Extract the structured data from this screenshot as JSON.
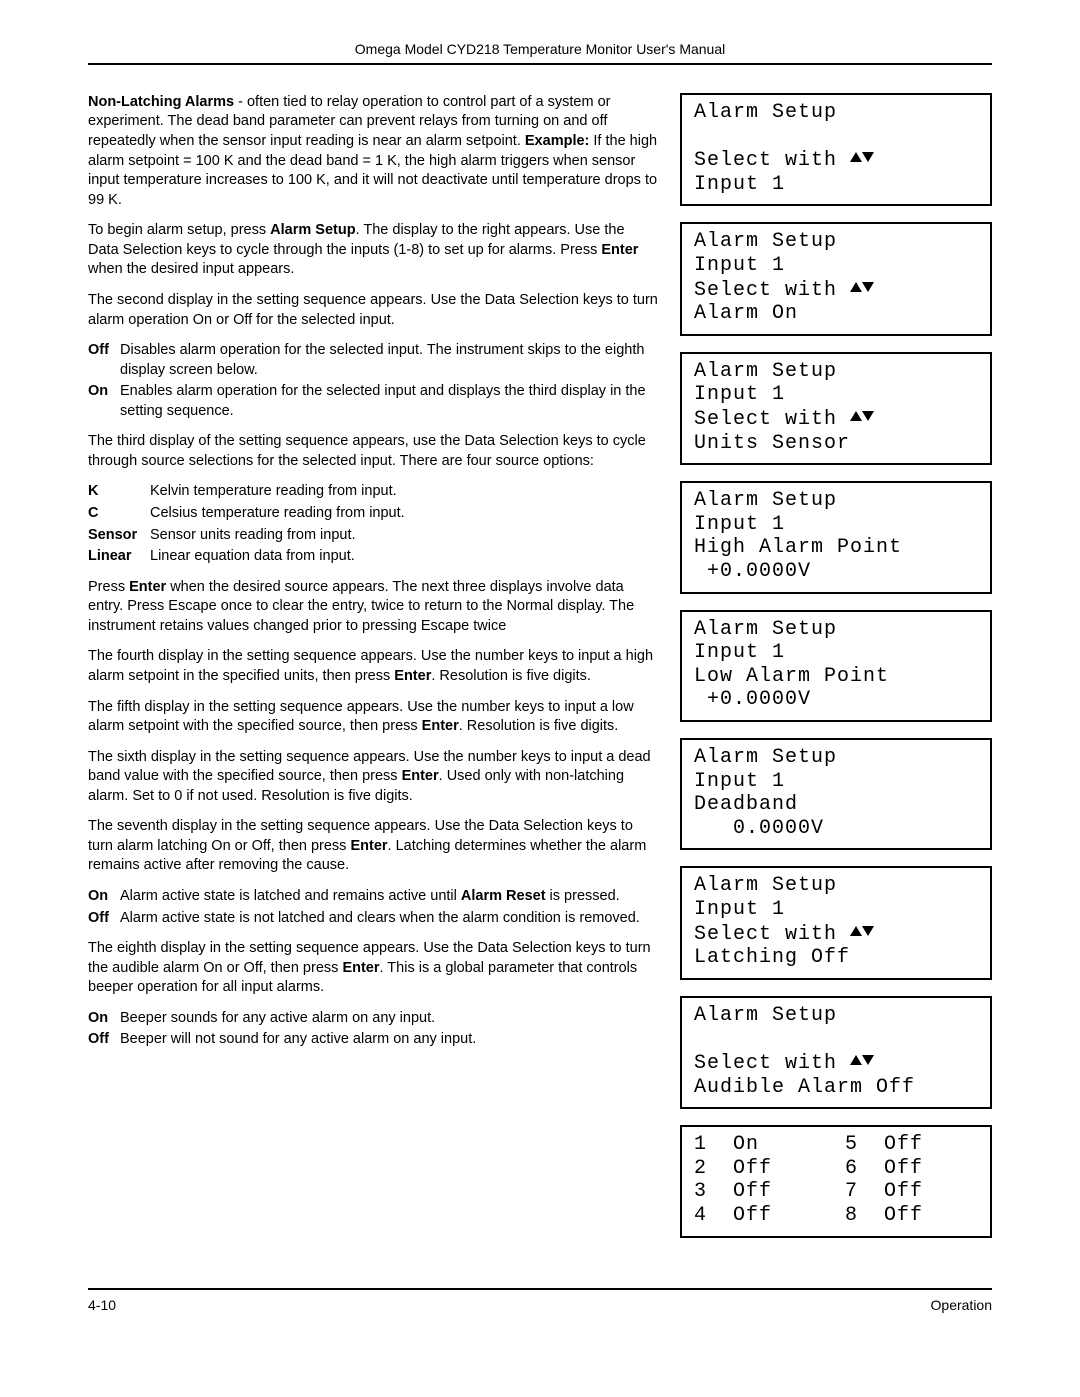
{
  "header": "Omega Model CYD218 Temperature Monitor User's Manual",
  "footer": {
    "left": "4-10",
    "right": "Operation"
  },
  "left": {
    "p_nonlatching": {
      "lead_bold": "Non-Latching Alarms",
      "rest": " - often tied to relay operation to control part of a system or experiment. The dead band parameter can prevent relays from turning on and off repeatedly when the sensor input reading is near an alarm setpoint. ",
      "ex_bold": "Example:",
      "ex_rest": " If the high alarm setpoint = 100 K and the dead band = 1 K, the high alarm triggers when sensor input temperature increases to 100 K, and it will not deactivate until temperature drops to 99 K."
    },
    "p_begin": {
      "a": "To begin alarm setup, press ",
      "b1": "Alarm Setup",
      "b": ". The display to the right appears. Use the Data Selection keys to cycle through the inputs (1-8) to set up for alarms. Press ",
      "b2": "Enter",
      "c": " when the desired input appears."
    },
    "p_second": "The second display in the setting sequence appears. Use the Data Selection keys to turn alarm operation On or Off for the selected input.",
    "list_onoff1": [
      {
        "key": "Off",
        "val": "Disables alarm operation for the selected input. The instrument skips to the eighth display screen below."
      },
      {
        "key": "On",
        "val": "Enables alarm operation for the selected input and displays the third display in the setting sequence."
      }
    ],
    "p_third": "The third display of the setting sequence appears, use the Data Selection keys to cycle through source selections for the selected input. There are four source options:",
    "list_sources": [
      {
        "key": "K",
        "val": "Kelvin temperature reading from input."
      },
      {
        "key": "C",
        "val": "Celsius temperature reading from input."
      },
      {
        "key": "Sensor",
        "val": "Sensor units reading from input."
      },
      {
        "key": "Linear",
        "val": "Linear equation data from input."
      }
    ],
    "p_presssource": {
      "a": "Press ",
      "b1": "Enter",
      "b": " when the desired source appears. The next three displays involve data entry. Press Escape once to clear the entry, twice to return to the Normal display. The instrument retains values changed prior to pressing Escape twice"
    },
    "p_fourth": {
      "a": "The fourth display in the setting sequence appears. Use the number keys to input a high alarm setpoint in the specified units, then press ",
      "b1": "Enter",
      "b": ". Resolution is five digits."
    },
    "p_fifth": {
      "a": "The fifth display in the setting sequence appears. Use the number keys to input a low alarm setpoint with the specified source, then press ",
      "b1": "Enter",
      "b": ". Resolution is five digits."
    },
    "p_sixth": {
      "a": "The sixth display in the setting sequence appears. Use the number keys to input a dead band value with the specified source, then press ",
      "b1": "Enter",
      "b": ". Used only with non-latching alarm. Set to 0 if not used. Resolution is five digits."
    },
    "p_seventh": {
      "a": "The seventh display in the setting sequence appears. Use the Data Selection keys to turn alarm latching On or Off, then press ",
      "b1": "Enter",
      "b": ". Latching determines whether the alarm remains active after removing the cause."
    },
    "list_latch": [
      {
        "key": "On",
        "val_a": "Alarm active state is latched and remains active until ",
        "val_b": "Alarm Reset",
        "val_c": " is pressed."
      },
      {
        "key": "Off",
        "val_a": "Alarm active state is not latched and clears when the alarm condition is removed.",
        "val_b": "",
        "val_c": ""
      }
    ],
    "p_eighth": {
      "a": "The eighth display in the setting sequence appears. Use the Data Selection keys to turn the audible alarm On or Off, then press ",
      "b1": "Enter",
      "b": ". This is a global parameter that controls beeper operation for all input alarms."
    },
    "list_beeper": [
      {
        "key": "On",
        "val": "Beeper sounds for any active alarm on any input."
      },
      {
        "key": "Off",
        "val": "Beeper will not sound for any active alarm on any input."
      }
    ]
  },
  "lcd_select_with": "Select with ",
  "lcd": [
    {
      "lines": [
        "Alarm Setup",
        "",
        "__SELECT__",
        "Input 1"
      ]
    },
    {
      "lines": [
        "Alarm Setup",
        "Input 1",
        "__SELECT__",
        "Alarm On"
      ]
    },
    {
      "lines": [
        "Alarm Setup",
        "Input 1",
        "__SELECT__",
        "Units Sensor"
      ]
    },
    {
      "lines": [
        "Alarm Setup",
        "Input 1",
        "High Alarm Point",
        " +0.0000V"
      ]
    },
    {
      "lines": [
        "Alarm Setup",
        "Input 1",
        "Low Alarm Point",
        " +0.0000V"
      ]
    },
    {
      "lines": [
        "Alarm Setup",
        "Input 1",
        "Deadband",
        "   0.0000V"
      ]
    },
    {
      "lines": [
        "Alarm Setup",
        "Input 1",
        "__SELECT__",
        "Latching Off"
      ]
    },
    {
      "lines": [
        "Alarm Setup",
        "",
        "__SELECT__",
        "Audible Alarm Off"
      ]
    }
  ],
  "status": [
    {
      "n": "1",
      "v": "On"
    },
    {
      "n": "5",
      "v": "Off"
    },
    {
      "n": "2",
      "v": "Off"
    },
    {
      "n": "6",
      "v": "Off"
    },
    {
      "n": "3",
      "v": "Off"
    },
    {
      "n": "7",
      "v": "Off"
    },
    {
      "n": "4",
      "v": "Off"
    },
    {
      "n": "8",
      "v": "Off"
    }
  ],
  "key_widths": {
    "onoff": "32px",
    "src": "62px"
  }
}
